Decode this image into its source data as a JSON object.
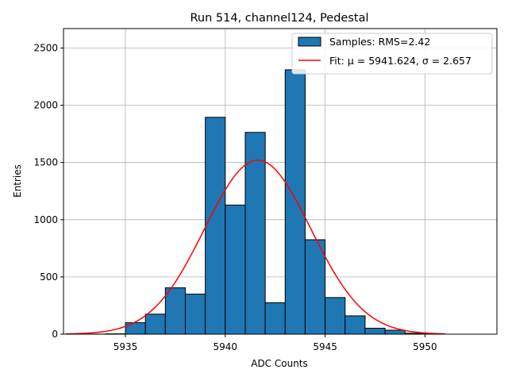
{
  "chart_data": {
    "type": "bar",
    "title": "Run 514, channel124, Pedestal",
    "xlabel": "ADC Counts",
    "ylabel": "Entries",
    "xlim": [
      5931.9,
      5953.6
    ],
    "ylim": [
      0,
      2670
    ],
    "xticks": [
      5935,
      5940,
      5945,
      5950
    ],
    "yticks": [
      0,
      500,
      1000,
      1500,
      2000,
      2500
    ],
    "grid": true,
    "legend_position": "top-right",
    "bar_color": "#1f77b4",
    "fit_color": "#ff0000",
    "histogram": {
      "name": "Samples: RMS=2.42",
      "bin_edges": [
        5932,
        5933,
        5934,
        5935,
        5936,
        5937,
        5938,
        5939,
        5940,
        5941,
        5942,
        5943,
        5944,
        5945,
        5946,
        5947,
        5948,
        5949,
        5950,
        5951,
        5952,
        5953
      ],
      "counts": [
        0,
        1,
        3,
        100,
        175,
        405,
        350,
        1895,
        1128,
        1763,
        275,
        2310,
        825,
        320,
        160,
        52,
        35,
        8,
        2,
        0,
        0
      ]
    },
    "fit": {
      "legend_prefix": "Fit: ",
      "legend_mu": "μ = 5941.624",
      "legend_sep": ", ",
      "legend_sigma": "σ = 2.657",
      "mu": 5941.624,
      "sigma": 2.657,
      "amplitude": 1520,
      "x_range": [
        5932,
        5951
      ]
    }
  }
}
